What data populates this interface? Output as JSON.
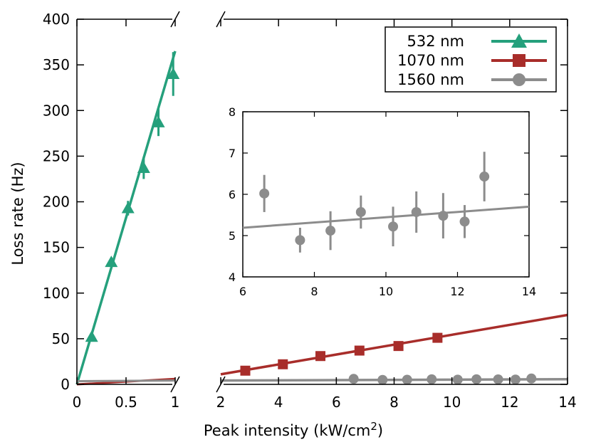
{
  "chart_data": {
    "type": "scatter",
    "xlabel": "Peak intensity  (kW/cm",
    "xlabel_sup": "2",
    "xlabel_close": ")",
    "ylabel": "Loss  rate  (Hz)",
    "left_panel": {
      "xlim": [
        0,
        1
      ],
      "ylim": [
        0,
        400
      ],
      "x_ticks": [
        "0",
        "0.5",
        "1"
      ],
      "y_ticks": [
        "0",
        "50",
        "100",
        "150",
        "200",
        "250",
        "300",
        "350",
        "400"
      ]
    },
    "right_panel": {
      "xlim": [
        2,
        14
      ],
      "ylim": [
        0,
        400
      ],
      "x_ticks": [
        "2",
        "4",
        "6",
        "8",
        "10",
        "12",
        "14"
      ]
    },
    "legend": {
      "position": "top-right",
      "entries": [
        "532 nm",
        "1070 nm",
        "1560 nm"
      ]
    },
    "series": [
      {
        "name": "532 nm",
        "color": "#25a07c",
        "marker": "triangle",
        "panel": "left",
        "x": [
          0.15,
          0.35,
          0.52,
          0.68,
          0.83,
          0.98
        ],
        "y": [
          52,
          134,
          193,
          237,
          287,
          340
        ],
        "yerr": [
          3,
          3,
          8,
          12,
          15,
          24
        ],
        "fit": {
          "x": [
            0,
            1
          ],
          "y": [
            0,
            365
          ]
        }
      },
      {
        "name": "1070 nm",
        "color": "#a82d2a",
        "marker": "square",
        "panel": "right",
        "x": [
          2.85,
          4.15,
          5.45,
          6.8,
          8.15,
          9.5
        ],
        "y": [
          15,
          22,
          31,
          37,
          42,
          51
        ],
        "fit": {
          "x": [
            2,
            14
          ],
          "y": [
            11,
            76
          ]
        },
        "fit_left": {
          "x": [
            0,
            1
          ],
          "y": [
            0,
            6
          ]
        }
      },
      {
        "name": "1560 nm",
        "color": "#8c8c8c",
        "marker": "circle",
        "panel": "right",
        "x": [
          6.6,
          7.6,
          8.45,
          9.3,
          10.2,
          10.85,
          11.6,
          12.2,
          12.75
        ],
        "y": [
          6.0,
          4.9,
          5.1,
          5.6,
          5.2,
          5.6,
          5.5,
          5.3,
          6.4
        ],
        "fit": {
          "x": [
            2,
            14
          ],
          "y": [
            4.2,
            5.7
          ]
        },
        "fit_left": {
          "x": [
            0,
            1
          ],
          "y": [
            3.5,
            4.2
          ]
        }
      }
    ],
    "inset": {
      "xlim": [
        6,
        14
      ],
      "ylim": [
        4,
        8
      ],
      "x_ticks": [
        "6",
        "8",
        "10",
        "12",
        "14"
      ],
      "y_ticks": [
        "4",
        "5",
        "6",
        "7",
        "8"
      ],
      "series": "1560 nm",
      "x": [
        6.6,
        7.6,
        8.45,
        9.3,
        10.2,
        10.85,
        11.6,
        12.2,
        12.75
      ],
      "y": [
        6.02,
        4.89,
        5.12,
        5.57,
        5.22,
        5.57,
        5.48,
        5.34,
        6.43
      ],
      "yerr": [
        0.45,
        0.3,
        0.47,
        0.4,
        0.48,
        0.5,
        0.55,
        0.4,
        0.6
      ],
      "fit": {
        "x": [
          6,
          14
        ],
        "y": [
          5.19,
          5.7
        ]
      }
    }
  }
}
